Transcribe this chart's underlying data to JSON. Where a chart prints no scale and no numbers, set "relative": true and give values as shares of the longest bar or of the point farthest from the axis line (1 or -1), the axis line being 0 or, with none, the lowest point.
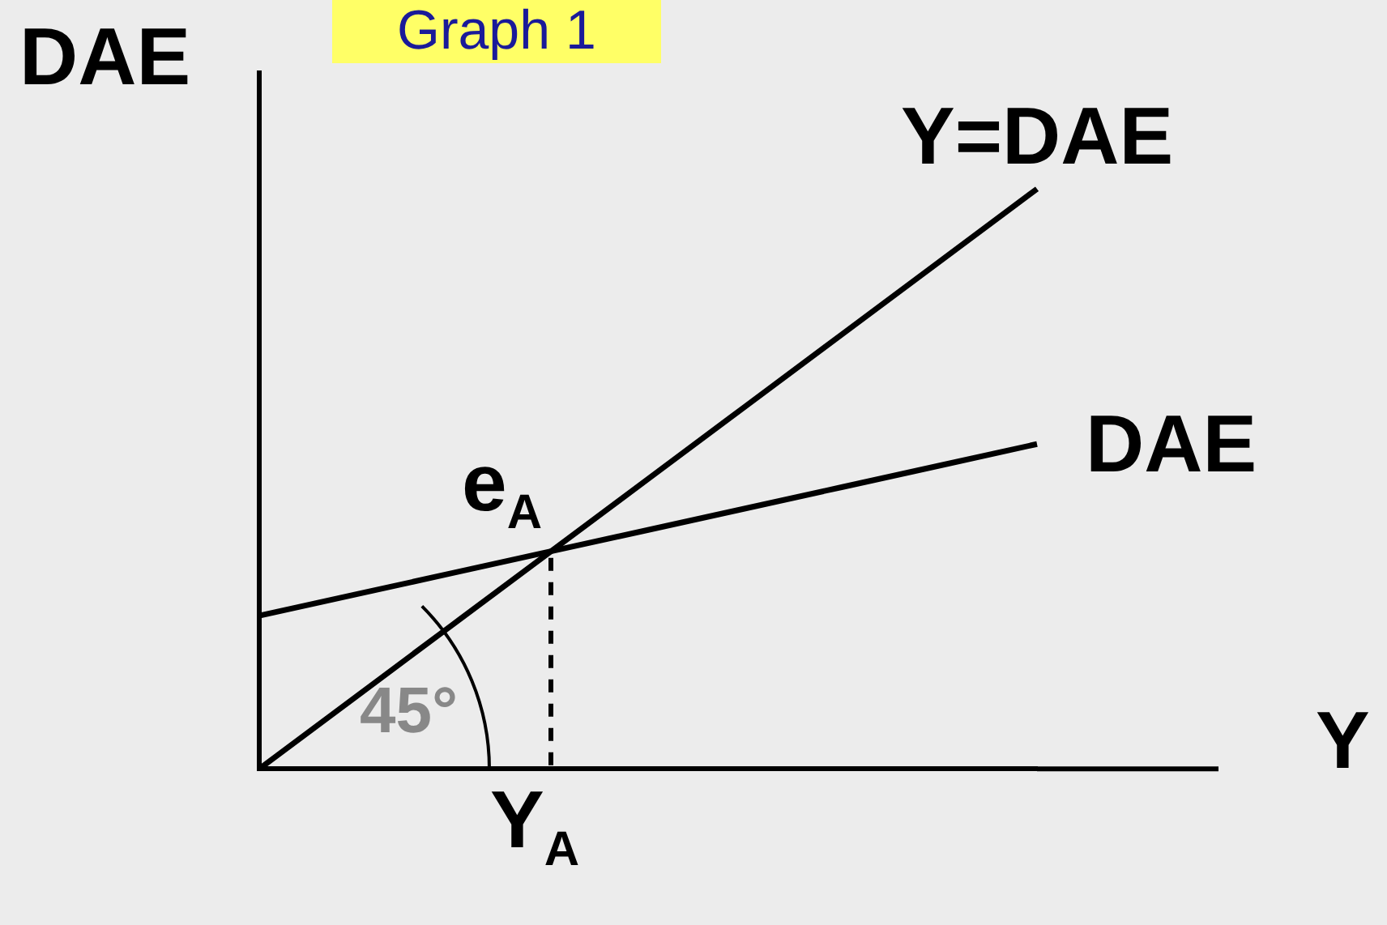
{
  "chart_data": {
    "type": "line",
    "title": "Graph 1",
    "xlabel": "Y",
    "ylabel": "DAE",
    "relative": true,
    "grid": false,
    "legend": false,
    "marker": "none",
    "categories": [
      null,
      null,
      null,
      null,
      null,
      null,
      null,
      null,
      null
    ],
    "series": [
      {
        "name": "Y=DAE",
        "color": "#000000",
        "values": [
          0,
          0.125,
          0.25,
          0.375,
          0.5,
          0.625,
          0.75,
          0.875,
          1
        ]
      },
      {
        "name": "DAE",
        "color": "#000000",
        "values": [
          0.264,
          0.301,
          0.338,
          0.375,
          0.412,
          0.449,
          0.486,
          0.523,
          0.56
        ]
      }
    ],
    "annotations": [
      "e$_{A}$",
      "Y$_{A}$",
      "45°"
    ]
  }
}
